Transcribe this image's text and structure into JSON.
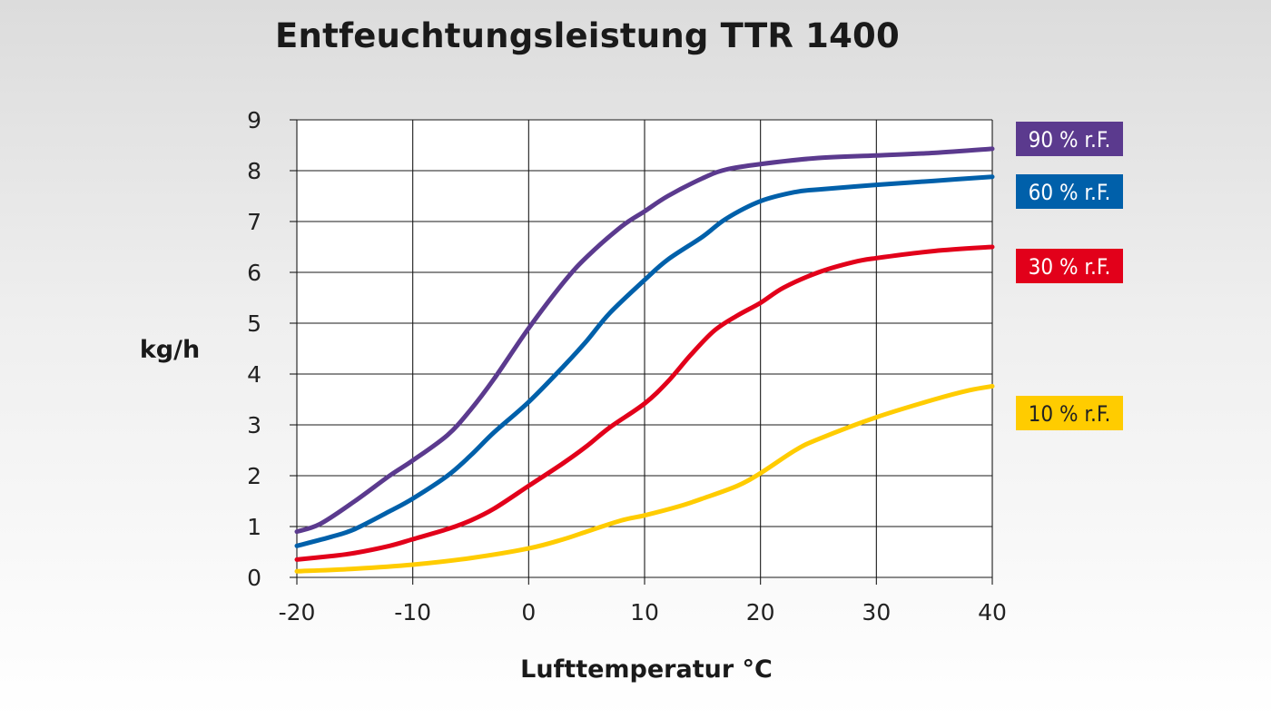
{
  "chart_data": {
    "type": "line",
    "title": "Entfeuchtungsleistung TTR 1400",
    "xlabel": "Lufttemperatur °C",
    "ylabel": "kg/h",
    "xlim": [
      -20,
      40
    ],
    "ylim": [
      0,
      9
    ],
    "xticks": [
      -20,
      -10,
      0,
      10,
      20,
      30,
      40
    ],
    "yticks": [
      0,
      1,
      2,
      3,
      4,
      5,
      6,
      7,
      8,
      9
    ],
    "grid": true,
    "legend": "right",
    "series": [
      {
        "name": "90 % r.F.",
        "color": "#5b3a8e",
        "label_text_color": "#ffffff",
        "x": [
          -20,
          -18,
          -15,
          -12,
          -10,
          -7,
          -5,
          -3,
          0,
          3,
          5,
          8,
          10,
          12,
          15,
          17,
          20,
          25,
          30,
          35,
          40
        ],
        "y": [
          0.9,
          1.05,
          1.5,
          2.0,
          2.3,
          2.8,
          3.3,
          3.9,
          4.9,
          5.8,
          6.3,
          6.9,
          7.2,
          7.5,
          7.85,
          8.02,
          8.13,
          8.25,
          8.3,
          8.35,
          8.43
        ]
      },
      {
        "name": "60 % r.F.",
        "color": "#0060aa",
        "label_text_color": "#ffffff",
        "x": [
          -20,
          -17,
          -15,
          -12,
          -10,
          -7,
          -5,
          -3,
          0,
          3,
          5,
          7,
          10,
          12,
          15,
          17,
          20,
          23,
          25,
          30,
          35,
          40
        ],
        "y": [
          0.62,
          0.8,
          0.95,
          1.3,
          1.55,
          2.0,
          2.4,
          2.85,
          3.45,
          4.15,
          4.65,
          5.2,
          5.85,
          6.25,
          6.7,
          7.05,
          7.4,
          7.58,
          7.63,
          7.72,
          7.8,
          7.88
        ]
      },
      {
        "name": "30 % r.F.",
        "color": "#e2001a",
        "label_text_color": "#ffffff",
        "x": [
          -20,
          -17,
          -15,
          -12,
          -10,
          -7,
          -5,
          -3,
          0,
          3,
          5,
          7,
          10,
          12,
          14,
          16,
          18,
          20,
          22,
          25,
          28,
          30,
          35,
          40
        ],
        "y": [
          0.35,
          0.42,
          0.48,
          0.62,
          0.75,
          0.95,
          1.12,
          1.35,
          1.8,
          2.25,
          2.58,
          2.95,
          3.42,
          3.85,
          4.38,
          4.85,
          5.15,
          5.4,
          5.7,
          6.0,
          6.2,
          6.28,
          6.42,
          6.5
        ]
      },
      {
        "name": "10 % r.F.",
        "color": "#ffcc00",
        "label_text_color": "#222222",
        "x": [
          -20,
          -15,
          -10,
          -5,
          0,
          3,
          5,
          8,
          10,
          13,
          15,
          18,
          20,
          23,
          25,
          30,
          35,
          38,
          40
        ],
        "y": [
          0.12,
          0.17,
          0.25,
          0.38,
          0.57,
          0.75,
          0.9,
          1.12,
          1.22,
          1.4,
          1.55,
          1.8,
          2.05,
          2.5,
          2.72,
          3.15,
          3.5,
          3.68,
          3.76
        ]
      }
    ]
  }
}
